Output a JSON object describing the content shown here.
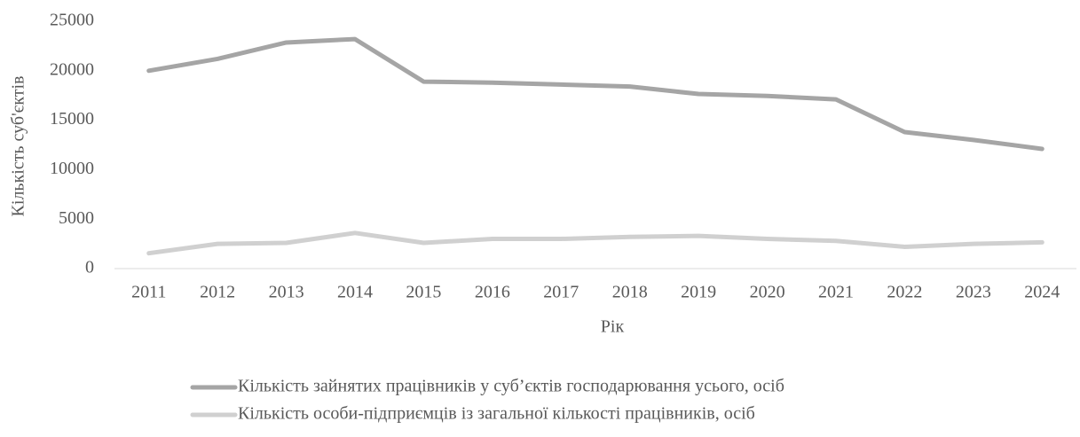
{
  "chart_data": {
    "type": "line",
    "xlabel": "Рік",
    "ylabel": "Кількість суб'єктів",
    "categories": [
      "2011",
      "2012",
      "2013",
      "2014",
      "2015",
      "2016",
      "2017",
      "2018",
      "2019",
      "2020",
      "2021",
      "2022",
      "2023",
      "2024"
    ],
    "series": [
      {
        "name": "Кількість зайнятих працівників у суб’єктів господарювання усього, осіб",
        "color": "#a5a5a5",
        "values": [
          20000,
          21200,
          22850,
          23200,
          18900,
          18800,
          18600,
          18400,
          17650,
          17450,
          17100,
          13800,
          13000,
          12100
        ]
      },
      {
        "name": "Кількість особи-підприємців із загальної кількості працівників, осіб",
        "color": "#d0d0d0",
        "values": [
          1550,
          2500,
          2600,
          3600,
          2600,
          3000,
          3000,
          3200,
          3300,
          3000,
          2800,
          2200,
          2500,
          2650
        ]
      }
    ],
    "ylim": [
      0,
      25000
    ],
    "yticks": [
      0,
      5000,
      10000,
      15000,
      20000,
      25000
    ],
    "grid": false,
    "legend": "bottom"
  }
}
